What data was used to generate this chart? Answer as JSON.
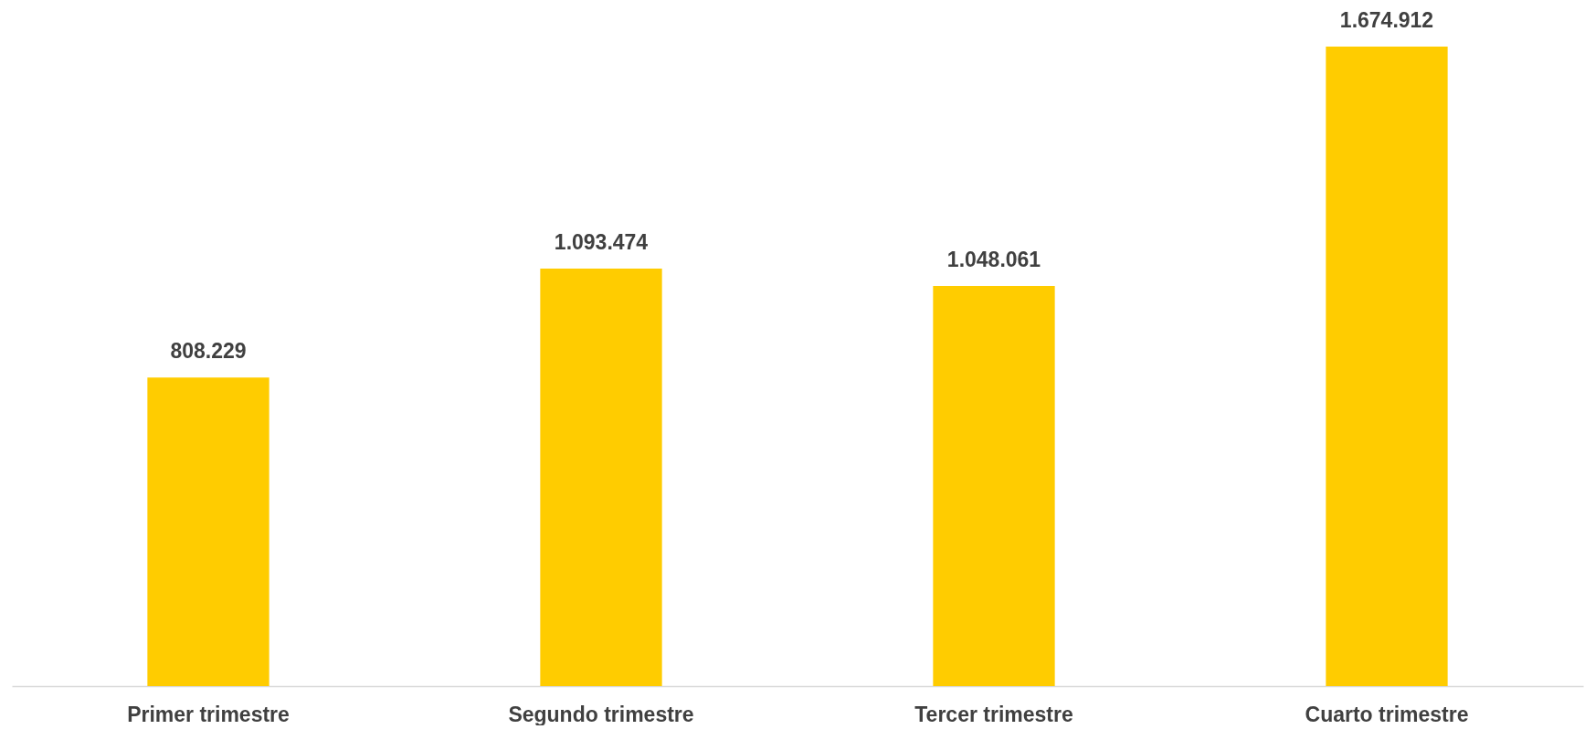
{
  "chart_data": {
    "type": "bar",
    "categories": [
      "Primer trimestre",
      "Segundo trimestre",
      "Tercer trimestre",
      "Cuarto trimestre"
    ],
    "values": [
      808229,
      1093474,
      1048061,
      1674912
    ],
    "value_labels": [
      "808.229",
      "1.093.474",
      "1.048.061",
      "1.674.912"
    ],
    "color": "#ffcc00",
    "grid": false,
    "tick_labels": "x"
  }
}
